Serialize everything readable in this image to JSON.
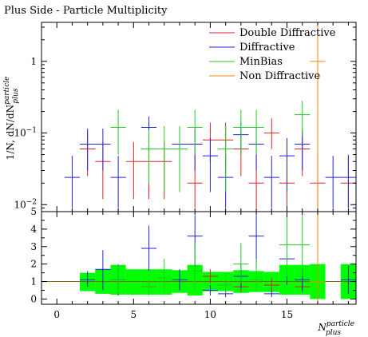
{
  "chart_data": [
    {
      "panel": "main",
      "type": "scatter",
      "title": "Plus Side - Particle Multiplicity",
      "ylabel": "1/N, dN/dN_plus^particle",
      "ylabel_main": "1/N, dN/dN",
      "ylabel_sup": "particle",
      "ylabel_sub": "plus",
      "yscale": "log",
      "xlim": [
        -1,
        19.5
      ],
      "ylim": [
        0.008,
        3.5
      ],
      "yticks": [
        {
          "value": 0.01,
          "label": "10",
          "exp": "−2"
        },
        {
          "value": 0.1,
          "label": "10",
          "exp": "−1"
        },
        {
          "value": 1,
          "label": "1",
          "exp": ""
        }
      ],
      "legend_position": "top-right",
      "series": [
        {
          "name": "Double Diffractive",
          "color": "#dd2222",
          "points": [
            {
              "x": 2,
              "y": 0.06,
              "lo": 0.025,
              "hi": 0.105
            },
            {
              "x": 3,
              "y": 0.04,
              "lo": 0.012,
              "hi": 0.075
            },
            {
              "x": 5,
              "y": 0.04,
              "lo": 0.012,
              "hi": 0.075
            },
            {
              "x": 6,
              "y": 0.04,
              "lo": 0.012,
              "hi": 0.075
            },
            {
              "x": 7,
              "y": 0.04,
              "lo": 0.012,
              "hi": 0.075
            },
            {
              "x": 9,
              "y": 0.02,
              "lo": 0.009,
              "hi": 0.05
            },
            {
              "x": 10,
              "y": 0.08,
              "lo": 0.04,
              "hi": 0.14
            },
            {
              "x": 11,
              "y": 0.08,
              "lo": 0.04,
              "hi": 0.14
            },
            {
              "x": 12,
              "y": 0.06,
              "lo": 0.025,
              "hi": 0.105
            },
            {
              "x": 13,
              "y": 0.02,
              "lo": 0.009,
              "hi": 0.05
            },
            {
              "x": 14,
              "y": 0.1,
              "lo": 0.06,
              "hi": 0.16
            },
            {
              "x": 15,
              "y": 0.02,
              "lo": 0.009,
              "hi": 0.05
            },
            {
              "x": 16,
              "y": 0.06,
              "lo": 0.025,
              "hi": 0.105
            },
            {
              "x": 17,
              "y": 0.02,
              "lo": 0.009,
              "hi": 0.05
            },
            {
              "x": 19,
              "y": 0.02,
              "lo": 0.009,
              "hi": 0.05
            }
          ]
        },
        {
          "name": "Diffractive",
          "color": "#2222dd",
          "points": [
            {
              "x": 1,
              "y": 0.024,
              "lo": 0.009,
              "hi": 0.048
            },
            {
              "x": 2,
              "y": 0.07,
              "lo": 0.03,
              "hi": 0.115
            },
            {
              "x": 3,
              "y": 0.07,
              "lo": 0.03,
              "hi": 0.115
            },
            {
              "x": 4,
              "y": 0.024,
              "lo": 0.009,
              "hi": 0.048
            },
            {
              "x": 6,
              "y": 0.12,
              "lo": 0.07,
              "hi": 0.17
            },
            {
              "x": 8,
              "y": 0.07,
              "lo": 0.03,
              "hi": 0.115
            },
            {
              "x": 9,
              "y": 0.07,
              "lo": 0.03,
              "hi": 0.115
            },
            {
              "x": 10,
              "y": 0.048,
              "lo": 0.015,
              "hi": 0.085
            },
            {
              "x": 11,
              "y": 0.024,
              "lo": 0.009,
              "hi": 0.048
            },
            {
              "x": 12,
              "y": 0.095,
              "lo": 0.05,
              "hi": 0.145
            },
            {
              "x": 13,
              "y": 0.07,
              "lo": 0.03,
              "hi": 0.115
            },
            {
              "x": 14,
              "y": 0.024,
              "lo": 0.009,
              "hi": 0.048
            },
            {
              "x": 15,
              "y": 0.048,
              "lo": 0.015,
              "hi": 0.085
            },
            {
              "x": 16,
              "y": 0.07,
              "lo": 0.03,
              "hi": 0.115
            },
            {
              "x": 18,
              "y": 0.024,
              "lo": 0.009,
              "hi": 0.048
            },
            {
              "x": 19,
              "y": 0.024,
              "lo": 0.009,
              "hi": 0.048
            }
          ]
        },
        {
          "name": "MinBias",
          "color": "#22cc22",
          "points": [
            {
              "x": 4,
              "y": 0.12,
              "lo": 0.05,
              "hi": 0.21
            },
            {
              "x": 6,
              "y": 0.06,
              "lo": 0.02,
              "hi": 0.11
            },
            {
              "x": 7,
              "y": 0.06,
              "lo": 0.015,
              "hi": 0.125
            },
            {
              "x": 8,
              "y": 0.06,
              "lo": 0.015,
              "hi": 0.125
            },
            {
              "x": 9,
              "y": 0.12,
              "lo": 0.05,
              "hi": 0.21
            },
            {
              "x": 11,
              "y": 0.06,
              "lo": 0.015,
              "hi": 0.125
            },
            {
              "x": 12,
              "y": 0.12,
              "lo": 0.05,
              "hi": 0.21
            },
            {
              "x": 13,
              "y": 0.12,
              "lo": 0.05,
              "hi": 0.21
            },
            {
              "x": 16,
              "y": 0.18,
              "lo": 0.09,
              "hi": 0.28
            }
          ]
        },
        {
          "name": "Non Diffractive",
          "color": "#ee8800",
          "points": [
            {
              "x": 17,
              "y": 1.0,
              "lo": 0.008,
              "hi": 3.5
            }
          ]
        }
      ]
    },
    {
      "panel": "ratio",
      "type": "scatter",
      "xlabel": "N_plus^particle",
      "xlabel_main": "N",
      "xlabel_sup": "particle",
      "xlabel_sub": "plus",
      "xlim": [
        -1,
        19.5
      ],
      "ylim": [
        -0.3,
        5
      ],
      "xticks": [
        0,
        5,
        10,
        15
      ],
      "yticks": [
        0,
        1,
        2,
        3,
        4,
        5
      ],
      "reference_line": 1.0,
      "band_color": "#00ff00",
      "band": [
        {
          "x": 2,
          "lo": 0.45,
          "hi": 1.5
        },
        {
          "x": 3,
          "lo": 0.3,
          "hi": 1.7
        },
        {
          "x": 4,
          "lo": 0.25,
          "hi": 1.95
        },
        {
          "x": 5,
          "lo": 0.25,
          "hi": 1.7
        },
        {
          "x": 6,
          "lo": 0.25,
          "hi": 1.7
        },
        {
          "x": 7,
          "lo": 0.25,
          "hi": 1.7
        },
        {
          "x": 8,
          "lo": 0.35,
          "hi": 1.65
        },
        {
          "x": 9,
          "lo": 0.2,
          "hi": 1.95
        },
        {
          "x": 10,
          "lo": 0.45,
          "hi": 1.55
        },
        {
          "x": 11,
          "lo": 0.45,
          "hi": 1.55
        },
        {
          "x": 12,
          "lo": 0.35,
          "hi": 1.65
        },
        {
          "x": 13,
          "lo": 0.4,
          "hi": 1.6
        },
        {
          "x": 14,
          "lo": 0.4,
          "hi": 1.55
        },
        {
          "x": 15,
          "lo": 0.25,
          "hi": 1.95
        },
        {
          "x": 16,
          "lo": 0.25,
          "hi": 1.95
        },
        {
          "x": 17,
          "lo": 0.0,
          "hi": 2.0
        },
        {
          "x": 19,
          "lo": 0.0,
          "hi": 2.0
        }
      ],
      "series": [
        {
          "name": "Double Diffractive",
          "color": "#dd2222",
          "points": [
            {
              "x": 6,
              "y": 0.7,
              "lo": 0.4,
              "hi": 1.0
            },
            {
              "x": 10,
              "y": 1.3,
              "lo": 0.9,
              "hi": 1.7
            },
            {
              "x": 12,
              "y": 0.7,
              "lo": 0.4,
              "hi": 1.0
            },
            {
              "x": 14,
              "y": 0.8,
              "lo": 0.5,
              "hi": 1.2
            },
            {
              "x": 16,
              "y": 0.7,
              "lo": 0.4,
              "hi": 1.0
            }
          ]
        },
        {
          "name": "Diffractive",
          "color": "#2222dd",
          "points": [
            {
              "x": 2,
              "y": 1.1,
              "lo": 0.7,
              "hi": 1.6
            },
            {
              "x": 3,
              "y": 1.7,
              "lo": 0.5,
              "hi": 2.8
            },
            {
              "x": 4,
              "y": 1.1,
              "lo": 0.2,
              "hi": 2.0
            },
            {
              "x": 6,
              "y": 2.9,
              "lo": 1.6,
              "hi": 4.2
            },
            {
              "x": 8,
              "y": 1.1,
              "lo": 0.5,
              "hi": 1.7
            },
            {
              "x": 9,
              "y": 3.6,
              "lo": 1.8,
              "hi": 4.8
            },
            {
              "x": 10,
              "y": 0.5,
              "lo": 0.2,
              "hi": 0.8
            },
            {
              "x": 11,
              "y": 0.3,
              "lo": 0.1,
              "hi": 0.5
            },
            {
              "x": 12,
              "y": 1.3,
              "lo": 0.6,
              "hi": 2.0
            },
            {
              "x": 13,
              "y": 3.6,
              "lo": 1.8,
              "hi": 4.8
            },
            {
              "x": 14,
              "y": 0.3,
              "lo": 0.1,
              "hi": 0.5
            },
            {
              "x": 15,
              "y": 2.3,
              "lo": 0.8,
              "hi": 3.6
            },
            {
              "x": 16,
              "y": 1.1,
              "lo": 0.5,
              "hi": 1.7
            },
            {
              "x": 19,
              "y": 1.1,
              "lo": 0.3,
              "hi": 1.9
            }
          ]
        },
        {
          "name": "MinBias",
          "color": "#22cc22",
          "points": [
            {
              "x": 4,
              "y": 1.1,
              "lo": 0.3,
              "hi": 2.0
            },
            {
              "x": 6,
              "y": 0.7,
              "lo": 0.2,
              "hi": 1.3
            },
            {
              "x": 7,
              "y": 1.2,
              "lo": 0.4,
              "hi": 2.3
            },
            {
              "x": 9,
              "y": 1.6,
              "lo": 0.5,
              "hi": 3.2
            },
            {
              "x": 11,
              "y": 0.8,
              "lo": 0.3,
              "hi": 1.5
            },
            {
              "x": 12,
              "y": 2.0,
              "lo": 0.9,
              "hi": 3.2
            },
            {
              "x": 13,
              "y": 1.1,
              "lo": 0.4,
              "hi": 2.3
            },
            {
              "x": 15,
              "y": 3.1,
              "lo": 1.3,
              "hi": 4.8
            },
            {
              "x": 16,
              "y": 3.1,
              "lo": 1.3,
              "hi": 4.8
            }
          ]
        },
        {
          "name": "Non Diffractive",
          "color": "#ee8800",
          "points": [
            {
              "x": 17,
              "y": 1.0,
              "lo": -0.3,
              "hi": 5.0
            }
          ]
        }
      ]
    }
  ]
}
